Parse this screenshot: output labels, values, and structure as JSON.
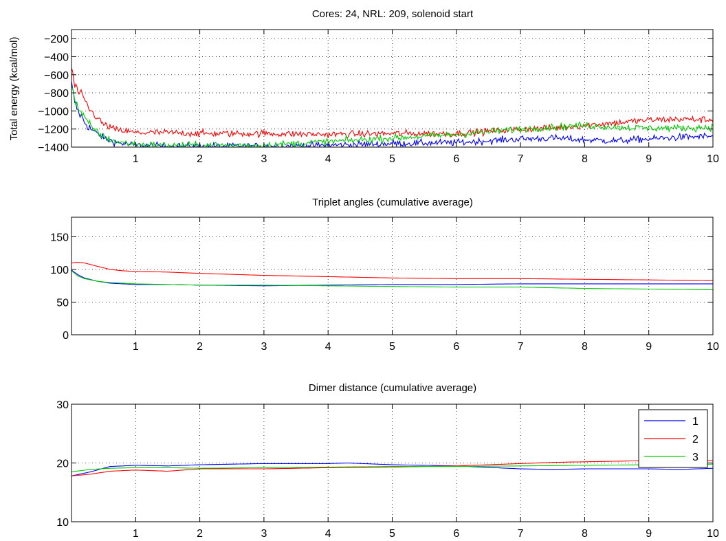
{
  "figure": {
    "background": "#ffffff",
    "series_colors": {
      "1": "#0000ff",
      "2": "#ff0000",
      "3": "#00cc00"
    }
  },
  "chart_data": [
    {
      "type": "line",
      "title": "Cores: 24, NRL: 209,  solenoid start",
      "xlabel": "",
      "ylabel": "Total energy (kcal/mol)",
      "xlim": [
        0,
        10
      ],
      "ylim": [
        -1400,
        -100
      ],
      "xticks": [
        1,
        2,
        3,
        4,
        5,
        6,
        7,
        8,
        9,
        10
      ],
      "yticks": [
        -1400,
        -1200,
        -1000,
        -800,
        -600,
        -400,
        -200
      ],
      "grid": true,
      "noise": 45,
      "series": [
        {
          "color": "#0000ff",
          "x": [
            0,
            0.05,
            0.1,
            0.2,
            0.3,
            0.5,
            0.7,
            1.0,
            1.5,
            2,
            3,
            4,
            5,
            6,
            7,
            7.5,
            8,
            8.5,
            9,
            9.5,
            10
          ],
          "values": [
            -700,
            -900,
            -1000,
            -1120,
            -1200,
            -1300,
            -1350,
            -1380,
            -1390,
            -1390,
            -1390,
            -1380,
            -1360,
            -1350,
            -1310,
            -1300,
            -1320,
            -1330,
            -1310,
            -1290,
            -1280
          ]
        },
        {
          "color": "#ff0000",
          "x": [
            0,
            0.05,
            0.1,
            0.2,
            0.3,
            0.5,
            0.7,
            1.0,
            1.5,
            2,
            3,
            4,
            5,
            6,
            7,
            7.5,
            8,
            8.5,
            9,
            9.5,
            10
          ],
          "values": [
            -520,
            -720,
            -780,
            -880,
            -1000,
            -1150,
            -1210,
            -1240,
            -1240,
            -1250,
            -1250,
            -1260,
            -1250,
            -1250,
            -1200,
            -1190,
            -1160,
            -1130,
            -1100,
            -1090,
            -1100
          ]
        },
        {
          "color": "#00cc00",
          "x": [
            0,
            0.05,
            0.1,
            0.2,
            0.3,
            0.5,
            0.7,
            1.0,
            1.5,
            2,
            3,
            4,
            5,
            6,
            7,
            7.5,
            8,
            8.5,
            9,
            9.5,
            10
          ],
          "values": [
            -680,
            -880,
            -960,
            -1080,
            -1170,
            -1290,
            -1340,
            -1370,
            -1380,
            -1380,
            -1380,
            -1340,
            -1300,
            -1260,
            -1200,
            -1180,
            -1160,
            -1180,
            -1190,
            -1190,
            -1180
          ]
        }
      ]
    },
    {
      "type": "line",
      "title": "Triplet angles (cumulative average)",
      "xlabel": "",
      "ylabel": "",
      "xlim": [
        0,
        10
      ],
      "ylim": [
        0,
        180
      ],
      "xticks": [
        1,
        2,
        3,
        4,
        5,
        6,
        7,
        8,
        9,
        10
      ],
      "yticks": [
        0,
        50,
        100,
        150
      ],
      "grid": true,
      "noise": 0,
      "series": [
        {
          "color": "#0000ff",
          "x": [
            0,
            0.1,
            0.2,
            0.4,
            0.6,
            0.8,
            1.0,
            1.5,
            2,
            3,
            4,
            5,
            6,
            7,
            8,
            9,
            10
          ],
          "values": [
            99,
            92,
            87,
            82,
            79,
            78,
            77,
            77,
            76,
            75,
            76,
            77,
            77,
            78,
            78,
            78,
            78
          ]
        },
        {
          "color": "#ff0000",
          "x": [
            0,
            0.1,
            0.2,
            0.4,
            0.6,
            0.8,
            1.0,
            1.5,
            2,
            3,
            4,
            5,
            6,
            7,
            8,
            9,
            10
          ],
          "values": [
            110,
            111,
            110,
            105,
            100,
            98,
            97,
            96,
            94,
            91,
            89,
            87,
            86,
            86,
            85,
            84,
            83
          ]
        },
        {
          "color": "#00cc00",
          "x": [
            0,
            0.1,
            0.2,
            0.4,
            0.6,
            0.8,
            1.0,
            1.5,
            2,
            3,
            4,
            5,
            6,
            7,
            8,
            9,
            10
          ],
          "values": [
            98,
            90,
            86,
            82,
            80,
            79,
            78,
            77,
            76,
            76,
            75,
            74,
            73,
            73,
            71,
            70,
            69
          ]
        }
      ]
    },
    {
      "type": "line",
      "title": "Dimer distance (cumulative average)",
      "xlabel": "",
      "ylabel": "",
      "xlim": [
        0,
        10
      ],
      "ylim": [
        10,
        30
      ],
      "xticks": [
        1,
        2,
        3,
        4,
        5,
        6,
        7,
        8,
        9,
        10
      ],
      "yticks": [
        10,
        20,
        30
      ],
      "grid": true,
      "noise": 0,
      "legend": {
        "position": "top-right",
        "entries": [
          "1",
          "2",
          "3"
        ]
      },
      "series": [
        {
          "name": "1",
          "color": "#0000ff",
          "x": [
            0,
            0.3,
            0.6,
            1.0,
            1.5,
            2,
            3,
            4,
            4.3,
            5,
            6,
            7,
            7.5,
            8,
            9,
            9.5,
            10
          ],
          "values": [
            17.8,
            18.5,
            19.4,
            19.6,
            19.5,
            19.7,
            19.9,
            19.9,
            20.0,
            19.7,
            19.5,
            19.0,
            18.9,
            19.0,
            19.0,
            18.9,
            19.1
          ]
        },
        {
          "name": "2",
          "color": "#ff0000",
          "x": [
            0,
            0.3,
            0.6,
            1.0,
            1.5,
            2,
            3,
            4,
            5,
            6,
            7,
            7.5,
            8,
            9,
            9.5,
            10
          ],
          "values": [
            17.8,
            18.1,
            18.6,
            18.8,
            18.6,
            19.0,
            19.0,
            19.2,
            19.3,
            19.5,
            19.9,
            20.1,
            20.2,
            20.4,
            20.6,
            20.4
          ]
        },
        {
          "name": "3",
          "color": "#00cc00",
          "x": [
            0,
            0.3,
            0.6,
            1.0,
            1.5,
            2,
            3,
            4,
            5,
            6,
            7,
            8,
            9,
            10
          ],
          "values": [
            18.5,
            18.9,
            19.1,
            19.2,
            19.2,
            19.1,
            19.2,
            19.3,
            19.4,
            19.4,
            19.5,
            19.6,
            19.7,
            19.8
          ]
        }
      ]
    }
  ]
}
